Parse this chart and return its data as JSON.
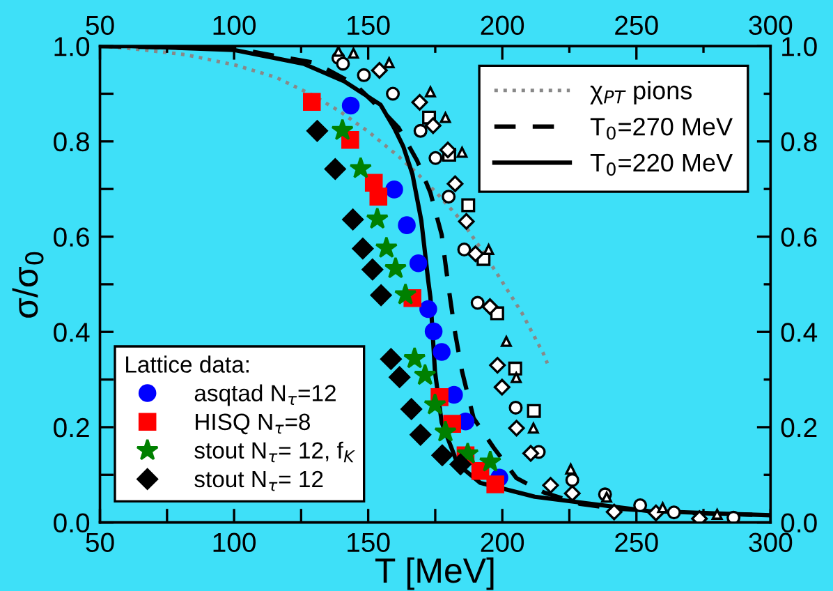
{
  "chart_data": {
    "type": "scatter",
    "xlabel": "T [MeV]",
    "ylabel": "σ/σ$_{0}$",
    "legend_title": "Lattice data:",
    "legend": [
      "top right",
      "bottom left"
    ],
    "grid": false,
    "xlim": [
      50,
      300
    ],
    "ylim": [
      0,
      1
    ],
    "xticks": [
      50,
      {
        "value": 75,
        "label": null
      },
      100,
      {
        "value": 125,
        "label": null
      },
      150,
      {
        "value": 175,
        "label": null
      },
      200,
      {
        "value": 225,
        "label": null
      },
      250,
      {
        "value": 275,
        "label": null
      },
      300
    ],
    "yticks": [
      {
        "value": 0,
        "label": "0.0"
      },
      {
        "value": 0.1,
        "label": null
      },
      {
        "value": 0.2,
        "label": "0.2"
      },
      {
        "value": 0.3,
        "label": null
      },
      {
        "value": 0.4,
        "label": "0.4"
      },
      {
        "value": 0.5,
        "label": null
      },
      {
        "value": 0.6,
        "label": "0.6"
      },
      {
        "value": 0.7,
        "label": null
      },
      {
        "value": 0.8,
        "label": "0.8"
      },
      {
        "value": 0.9,
        "label": null
      },
      {
        "value": 1,
        "label": "1.0"
      }
    ],
    "x2lim": [
      50,
      300
    ],
    "x2ticks": [
      50,
      {
        "value": 75,
        "label": null
      },
      100,
      {
        "value": 125,
        "label": null
      },
      150,
      {
        "value": 175,
        "label": null
      },
      200,
      {
        "value": 225,
        "label": null
      },
      250,
      {
        "value": 275,
        "label": null
      },
      300
    ],
    "y2lim": [
      0,
      1
    ],
    "y2ticks": [
      {
        "value": 0,
        "label": "0.0"
      },
      {
        "value": 0.1,
        "label": null
      },
      {
        "value": 0.2,
        "label": "0.2"
      },
      {
        "value": 0.3,
        "label": null
      },
      {
        "value": 0.4,
        "label": "0.4"
      },
      {
        "value": 0.5,
        "label": null
      },
      {
        "value": 0.6,
        "label": "0.6"
      },
      {
        "value": 0.7,
        "label": null
      },
      {
        "value": 0.8,
        "label": "0.8"
      },
      {
        "value": 0.9,
        "label": null
      },
      {
        "value": 1,
        "label": "1.0"
      }
    ],
    "series": [
      {
        "type": "line",
        "name": "χ$_{PT}$ pions",
        "color": "#888888",
        "line_style": "dotted",
        "x": [
          50,
          63,
          82,
          100.6,
          115.8,
          129.3,
          139.4,
          150.4,
          161.4,
          168.2,
          175.8,
          185,
          192.6,
          198.2,
          202.8,
          207.4,
          211.3,
          215.2,
          216.8
        ],
        "values": [
          1.0,
          0.994,
          0.982,
          0.96,
          0.934,
          0.897,
          0.863,
          0.819,
          0.768,
          0.733,
          0.69,
          0.632,
          0.57,
          0.521,
          0.48,
          0.439,
          0.397,
          0.356,
          0.334
        ]
      },
      {
        "type": "line",
        "name": "T$_{0}$=270 MeV",
        "color": "#000000",
        "line_style": "dashed",
        "x": [
          50,
          100,
          130,
          145,
          155.5,
          161.4,
          168.2,
          173.2,
          177.4,
          179.2,
          180,
          182.5,
          185,
          189.3,
          196.9,
          205.3,
          215.5,
          229,
          242.5,
          270,
          300
        ],
        "values": [
          1.0,
          0.995,
          0.965,
          0.92,
          0.863,
          0.828,
          0.76,
          0.692,
          0.604,
          0.526,
          0.492,
          0.395,
          0.317,
          0.219,
          0.156,
          0.093,
          0.063,
          0.039,
          0.029,
          0.02,
          0.015
        ]
      },
      {
        "type": "line",
        "name": "T$_{0}$=220 MeV",
        "color": "#000000",
        "line_style": "solid",
        "x": [
          50,
          61.7,
          99.7,
          125.9,
          141.1,
          154.6,
          159.7,
          163.1,
          166.5,
          169.8,
          172.4,
          173.2,
          174.9,
          177.4,
          183.4,
          191.8,
          212.1,
          254.4,
          300
        ],
        "values": [
          1.0,
          1.0,
          0.992,
          0.963,
          0.926,
          0.877,
          0.828,
          0.789,
          0.731,
          0.634,
          0.507,
          0.473,
          0.317,
          0.21,
          0.122,
          0.083,
          0.054,
          0.024,
          0.015
        ]
      },
      {
        "type": "scatter",
        "marker": "circle",
        "color": "#ffffff",
        "x": [
          138.9,
          140.6,
          148.4,
          159.2,
          169.5,
          175.1,
          180.0,
          185.8,
          190.8,
          205.0,
          213.6,
          226.1,
          238.3,
          251.4,
          264.0,
          286.2
        ],
        "values": [
          0.975,
          0.963,
          0.939,
          0.9,
          0.822,
          0.765,
          0.684,
          0.573,
          0.461,
          0.241,
          0.148,
          0.089,
          0.059,
          0.036,
          0.021,
          0.01
        ]
      },
      {
        "type": "scatter",
        "marker": "square",
        "color": "#ffffff",
        "x": [
          172.7,
          180.2,
          187.3,
          193.0,
          198.1,
          204.8,
          211.8
        ],
        "values": [
          0.85,
          0.772,
          0.666,
          0.553,
          0.439,
          0.323,
          0.234
        ]
      },
      {
        "type": "scatter",
        "marker": "diamond",
        "color": "#ffffff",
        "x": [
          154.2,
          169.2,
          174.2,
          179.7,
          182.4,
          186.6,
          190.0,
          195.4,
          198.2,
          199.9,
          205.3,
          210.6,
          218.0,
          226.1,
          241.7,
          257.3,
          273.5
        ],
        "values": [
          0.949,
          0.882,
          0.833,
          0.782,
          0.711,
          0.632,
          0.564,
          0.453,
          0.33,
          0.284,
          0.198,
          0.145,
          0.078,
          0.061,
          0.022,
          0.02,
          0.008
        ]
      },
      {
        "type": "scatter",
        "marker": "triangle",
        "color": "#ffffff",
        "x": [
          138.9,
          144.5,
          157.8,
          173.2,
          178.8,
          185.0,
          194.9,
          201.5,
          205.2,
          211.6,
          225.5,
          238.9,
          259.8,
          280.1
        ],
        "values": [
          0.989,
          0.985,
          0.965,
          0.904,
          0.85,
          0.777,
          0.573,
          0.38,
          0.304,
          0.198,
          0.112,
          0.053,
          0.031,
          0.017
        ]
      },
      {
        "type": "scatter",
        "marker": "circle",
        "name": "asqtad N$_{τ}$=12",
        "color": "#0000ff",
        "x": [
          143.5,
          159.7,
          164.4,
          168.7,
          172.4,
          174.4,
          177.4,
          182.0,
          186.3,
          198.9
        ],
        "values": [
          0.875,
          0.699,
          0.624,
          0.544,
          0.448,
          0.401,
          0.358,
          0.268,
          0.212,
          0.094
        ]
      },
      {
        "type": "scatter",
        "marker": "square",
        "name": "HISQ N$_{τ}$=8",
        "color": "#ff0000",
        "x": [
          129.0,
          143.3,
          152.1,
          153.8,
          166.5,
          176.6,
          181.3,
          186.3,
          191.8,
          197.4
        ],
        "values": [
          0.883,
          0.803,
          0.713,
          0.684,
          0.471,
          0.263,
          0.207,
          0.141,
          0.108,
          0.08
        ]
      },
      {
        "type": "scatter",
        "marker": "star",
        "name": "stout N$_{τ}$= 12, f$_{K}$",
        "color": "#008000",
        "x": [
          140.4,
          147.2,
          153.4,
          156.8,
          160.2,
          163.9,
          167.3,
          171.2,
          174.9,
          178.8,
          187.1,
          195.5
        ],
        "values": [
          0.823,
          0.743,
          0.637,
          0.576,
          0.533,
          0.478,
          0.344,
          0.309,
          0.247,
          0.19,
          0.144,
          0.127
        ]
      },
      {
        "type": "scatter",
        "marker": "diamond",
        "name": "stout N$_{τ}$= 12",
        "color": "#000000",
        "x": [
          131.0,
          137.7,
          144.3,
          148.0,
          151.6,
          154.8,
          158.5,
          161.7,
          166.1,
          169.5,
          177.6,
          184.4
        ],
        "values": [
          0.822,
          0.742,
          0.636,
          0.575,
          0.531,
          0.477,
          0.343,
          0.305,
          0.238,
          0.184,
          0.141,
          0.122
        ]
      }
    ]
  }
}
